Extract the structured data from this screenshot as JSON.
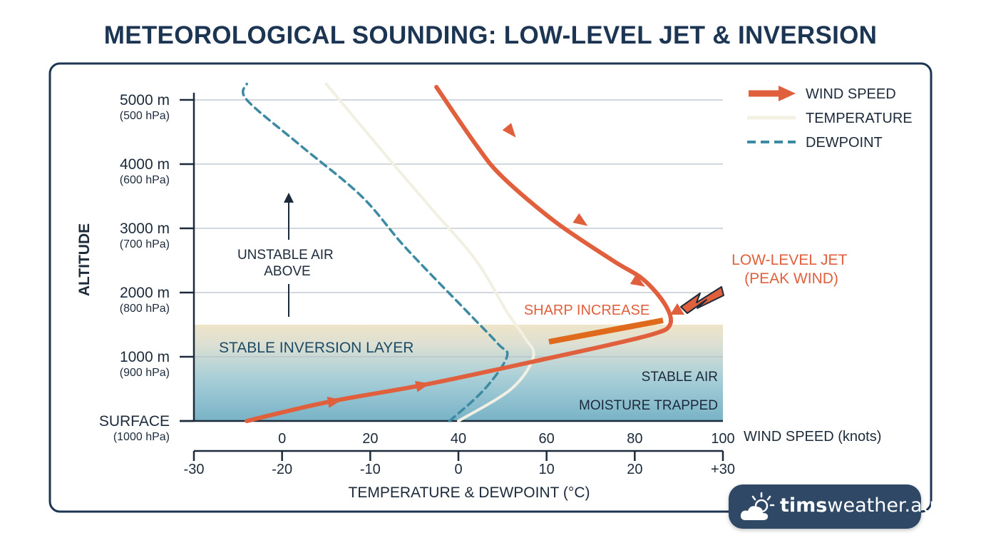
{
  "title": "METEOROLOGICAL SOUNDING: LOW-LEVEL JET & INVERSION",
  "brand": {
    "name_bold": "tims",
    "name_light": "weather.au",
    "icon": "sun-cloud-icon"
  },
  "colors": {
    "wind": "#e0603d",
    "temperature": "#f2efe3",
    "dewpoint": "#3d8aa3",
    "text": "#1c2a3a",
    "frame": "#1c3553",
    "grid": "#b9c0c8",
    "jet_label": "#e0603d"
  },
  "chart_data": {
    "type": "line",
    "title": "METEOROLOGICAL SOUNDING: LOW-LEVEL JET & INVERSION",
    "y_axis": {
      "label": "ALTITUDE",
      "range_m": [
        0,
        5000
      ],
      "ticks": [
        {
          "value": 5000,
          "label": "5000 m",
          "sub": "(500 hPa)"
        },
        {
          "value": 4000,
          "label": "4000 m",
          "sub": "(600 hPa)"
        },
        {
          "value": 3000,
          "label": "3000 m",
          "sub": "(700 hPa)"
        },
        {
          "value": 2000,
          "label": "2000 m",
          "sub": "(800 hPa)"
        },
        {
          "value": 1000,
          "label": "1000 m",
          "sub": "(900 hPa)"
        },
        {
          "value": 0,
          "label": "SURFACE",
          "sub": "(1000 hPa)"
        }
      ]
    },
    "x_axis_wind": {
      "label": "WIND SPEED (knots)",
      "range": [
        -20,
        100
      ],
      "ticks": [
        0,
        20,
        40,
        60,
        80,
        100
      ]
    },
    "x_axis_temp": {
      "label": "TEMPERATURE & DEWPOINT (°C)",
      "range": [
        -30,
        30
      ],
      "ticks": [
        {
          "value": -30,
          "label": "-30"
        },
        {
          "value": -20,
          "label": "-20"
        },
        {
          "value": -10,
          "label": "-10"
        },
        {
          "value": 0,
          "label": "0"
        },
        {
          "value": 10,
          "label": "10"
        },
        {
          "value": 20,
          "label": "20"
        },
        {
          "value": 30,
          "label": "+30"
        }
      ]
    },
    "grid": true,
    "legend_position": "top-right",
    "legend": [
      {
        "key": "wind",
        "label": "WIND SPEED",
        "style": "arrow"
      },
      {
        "key": "temperature",
        "label": "TEMPERATURE",
        "style": "solid"
      },
      {
        "key": "dewpoint",
        "label": "DEWPOINT",
        "style": "dashed"
      }
    ],
    "series": [
      {
        "key": "wind",
        "name": "WIND SPEED",
        "axis": "wind",
        "points": [
          [
            -8,
            0
          ],
          [
            10,
            290
          ],
          [
            32,
            560
          ],
          [
            52,
            850
          ],
          [
            70,
            1120
          ],
          [
            84,
            1350
          ],
          [
            88,
            1500
          ],
          [
            87,
            1800
          ],
          [
            82,
            2200
          ],
          [
            75,
            2500
          ],
          [
            62,
            3100
          ],
          [
            50,
            3800
          ],
          [
            44,
            4300
          ],
          [
            35,
            5200
          ]
        ],
        "arrow_at": [
          [
            12,
            310
          ],
          [
            32,
            560
          ],
          [
            81,
            2150
          ],
          [
            68,
            3100
          ],
          [
            52,
            4500
          ]
        ]
      },
      {
        "key": "temperature",
        "name": "TEMPERATURE",
        "axis": "temp",
        "points": [
          [
            0,
            0
          ],
          [
            6,
            500
          ],
          [
            8.5,
            1000
          ],
          [
            7.5,
            1300
          ],
          [
            5.5,
            1700
          ],
          [
            2,
            2500
          ],
          [
            -3,
            3300
          ],
          [
            -8,
            4100
          ],
          [
            -15,
            5250
          ]
        ]
      },
      {
        "key": "dewpoint",
        "name": "DEWPOINT",
        "axis": "temp",
        "points": [
          [
            -1,
            0
          ],
          [
            3,
            500
          ],
          [
            5.5,
            1000
          ],
          [
            4.5,
            1200
          ],
          [
            1,
            1700
          ],
          [
            -6,
            2700
          ],
          [
            -11,
            3500
          ],
          [
            -18,
            4300
          ],
          [
            -24,
            5000
          ],
          [
            -24,
            5250
          ]
        ]
      }
    ],
    "inversion_layer": {
      "bottom_m": 0,
      "top_m": 1500
    },
    "annotations": {
      "unstable": "UNSTABLE AIR\nABOVE",
      "inversion": "STABLE INVERSION LAYER",
      "sharp_increase": "SHARP INCREASE",
      "jet": "LOW-LEVEL JET\n(PEAK WIND)",
      "stable_air": "STABLE AIR",
      "moisture": "MOISTURE TRAPPED"
    }
  }
}
